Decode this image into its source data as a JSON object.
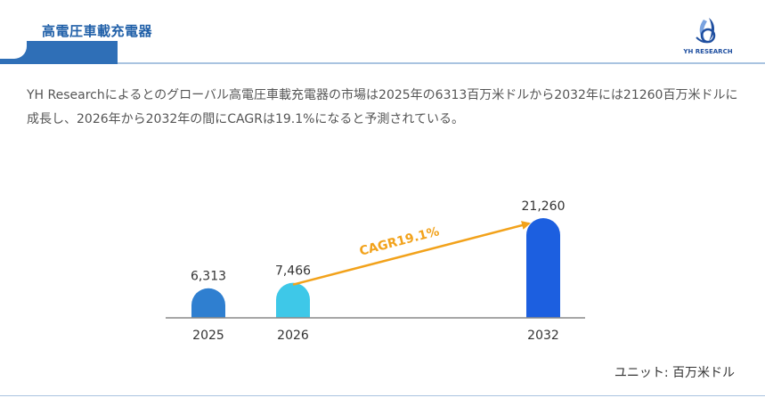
{
  "header": {
    "title": "高電圧車載充電器",
    "logo_text": "YH RESEARCH"
  },
  "description": "YH Researchによるとのグローバル高電圧車載充電器の市場は2025年の6313百万米ドルから2032年には21260百万米ドルに成長し、2026年から2032年の間にCAGRは19.1%になると予測されている。",
  "chart_data": {
    "type": "bar",
    "categories": [
      "2025",
      "2026",
      "2032"
    ],
    "values": [
      6313,
      7466,
      21260
    ],
    "value_labels": [
      "6,313",
      "7,466",
      "21,260"
    ],
    "bar_colors": [
      "#2f7fd0",
      "#3ec8e8",
      "#1c5fe0"
    ],
    "annotation": {
      "text": "CAGR19.1%",
      "from": "2026",
      "to": "2032",
      "color": "#f2a21b"
    },
    "unit": "ユニット: 百万米ドル",
    "ylim": [
      0,
      21260
    ]
  },
  "colors": {
    "brand": "#1f5fa8",
    "accent_bar": "#2f6fb7",
    "arrow": "#f2a21b"
  }
}
